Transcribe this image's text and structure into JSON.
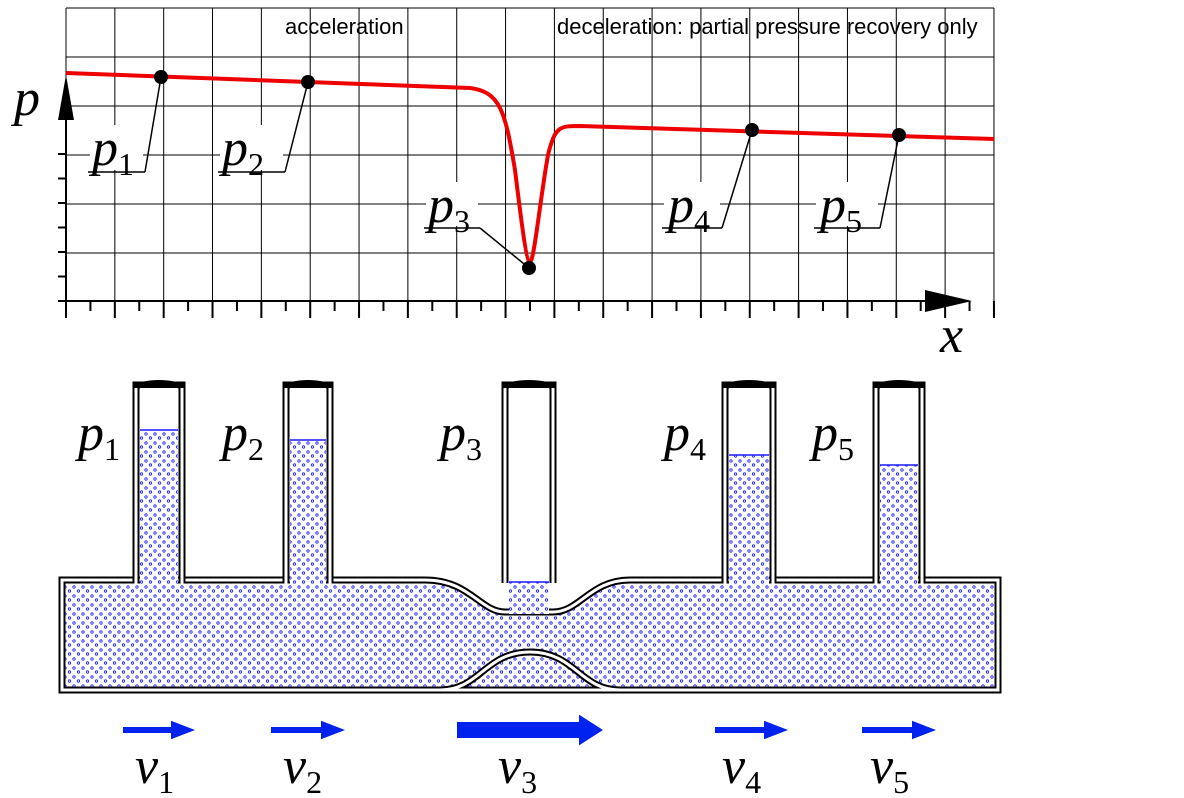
{
  "annotations": {
    "left": "acceleration",
    "right": "deceleration: partial pressure recovery only"
  },
  "graph": {
    "y_axis_label": "p",
    "x_axis_label": "x",
    "points": [
      {
        "symbol": "p",
        "subscript": "1"
      },
      {
        "symbol": "p",
        "subscript": "2"
      },
      {
        "symbol": "p",
        "subscript": "3"
      },
      {
        "symbol": "p",
        "subscript": "4"
      },
      {
        "symbol": "p",
        "subscript": "5"
      }
    ]
  },
  "apparatus": {
    "tubes": [
      {
        "symbol": "p",
        "subscript": "1"
      },
      {
        "symbol": "p",
        "subscript": "2"
      },
      {
        "symbol": "p",
        "subscript": "3"
      },
      {
        "symbol": "p",
        "subscript": "4"
      },
      {
        "symbol": "p",
        "subscript": "5"
      }
    ]
  },
  "velocities": [
    {
      "symbol": "v",
      "subscript": "1"
    },
    {
      "symbol": "v",
      "subscript": "2"
    },
    {
      "symbol": "v",
      "subscript": "3"
    },
    {
      "symbol": "v",
      "subscript": "4"
    },
    {
      "symbol": "v",
      "subscript": "5"
    }
  ]
}
